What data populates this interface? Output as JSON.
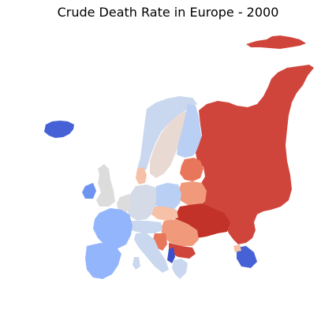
{
  "title": "Crude Death Rate in Europe - 2000",
  "colors": {
    "dark_red": "#c23228",
    "red": "#cf453c",
    "salmon_dark": "#e8765a",
    "salmon": "#f09a7b",
    "peach": "#f6c1a6",
    "pale_pink": "#e8d9d3",
    "light_gray": "#dcdcdc",
    "pale_blue_gray": "#d4dbe7",
    "pale_blue": "#c9d7ef",
    "light_blue": "#b9cff4",
    "mid_blue": "#93b5fb",
    "blue": "#6f93f0",
    "dark_blue": "#4661d6",
    "deep_blue": "#3a4fc8"
  }
}
